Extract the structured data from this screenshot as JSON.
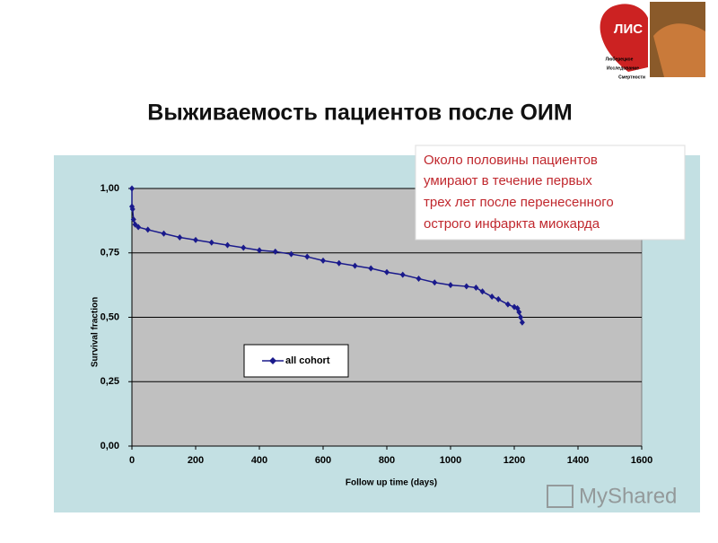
{
  "header": {
    "title": "Выживаемость пациентов после ОИМ"
  },
  "logo": {
    "text": "ЛИС",
    "lines": [
      "Люберецкое",
      "Исследование",
      "Смертности"
    ]
  },
  "annotation": {
    "lines": [
      "Около половины пациентов",
      "умирают  в течение первых",
      "трех лет после перенесенного",
      "острого инфаркта миокарда"
    ]
  },
  "watermark": "MyShared",
  "chart_data": {
    "type": "line",
    "x": [
      0,
      0,
      2,
      5,
      10,
      20,
      50,
      100,
      150,
      200,
      250,
      300,
      350,
      400,
      450,
      500,
      550,
      600,
      650,
      700,
      750,
      800,
      850,
      900,
      950,
      1000,
      1050,
      1080,
      1100,
      1130,
      1150,
      1180,
      1200,
      1210,
      1215,
      1220,
      1225
    ],
    "series": [
      {
        "name": "all cohort",
        "color": "#1a1a8c",
        "values": [
          1.0,
          0.93,
          0.92,
          0.88,
          0.86,
          0.85,
          0.84,
          0.825,
          0.81,
          0.8,
          0.79,
          0.78,
          0.77,
          0.76,
          0.755,
          0.745,
          0.735,
          0.72,
          0.71,
          0.7,
          0.69,
          0.675,
          0.665,
          0.65,
          0.635,
          0.625,
          0.62,
          0.615,
          0.6,
          0.58,
          0.57,
          0.55,
          0.54,
          0.535,
          0.52,
          0.5,
          0.48
        ]
      }
    ],
    "xlabel": "Follow up time (days)",
    "ylabel": "Survival fraction",
    "xlim": [
      0,
      1600
    ],
    "ylim": [
      0,
      1
    ],
    "xticks": [
      0,
      200,
      400,
      600,
      800,
      1000,
      1200,
      1400,
      1600
    ],
    "yticks": [
      {
        "value": 0,
        "label": "0,00"
      },
      {
        "value": 0.25,
        "label": "0,25"
      },
      {
        "value": 0.5,
        "label": "0,50"
      },
      {
        "value": 0.75,
        "label": "0,75"
      },
      {
        "value": 1,
        "label": "1,00"
      }
    ],
    "grid": true,
    "legend": "center-left"
  }
}
